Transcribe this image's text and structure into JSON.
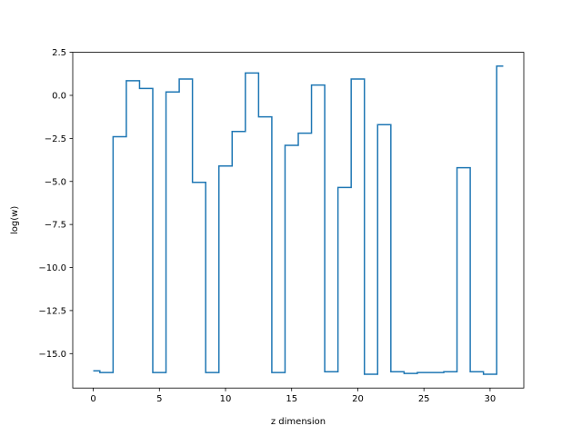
{
  "chart_data": {
    "type": "line",
    "step": "mid",
    "title": "",
    "xlabel": "z dimension",
    "ylabel": "log(w)",
    "xlim": [
      -1.55,
      32.55
    ],
    "ylim": [
      -17.0,
      2.5
    ],
    "xticks": [
      0,
      5,
      10,
      15,
      20,
      25,
      30
    ],
    "yticks": [
      2.5,
      0.0,
      -2.5,
      -5.0,
      -7.5,
      -10.0,
      -12.5,
      -15.0
    ],
    "ytick_labels": [
      "2.5",
      "0.0",
      "−2.5",
      "−5.0",
      "−7.5",
      "−10.0",
      "−12.5",
      "−15.0"
    ],
    "grid": false,
    "line_color": "#1f77b4",
    "x": [
      0,
      1,
      2,
      3,
      4,
      5,
      6,
      7,
      8,
      9,
      10,
      11,
      12,
      13,
      14,
      15,
      16,
      17,
      18,
      19,
      20,
      21,
      22,
      23,
      24,
      25,
      26,
      27,
      28,
      29,
      30,
      31
    ],
    "y": [
      -16.0,
      -16.1,
      -2.4,
      0.85,
      0.4,
      -16.1,
      0.2,
      0.95,
      -5.05,
      -16.1,
      -4.1,
      -2.1,
      1.3,
      -1.25,
      -16.1,
      -2.9,
      -2.2,
      0.6,
      -16.05,
      -5.35,
      0.95,
      -16.2,
      -1.7,
      -16.05,
      -16.15,
      -16.1,
      -16.1,
      -16.05,
      -4.2,
      -16.05,
      -16.2,
      1.7
    ]
  }
}
